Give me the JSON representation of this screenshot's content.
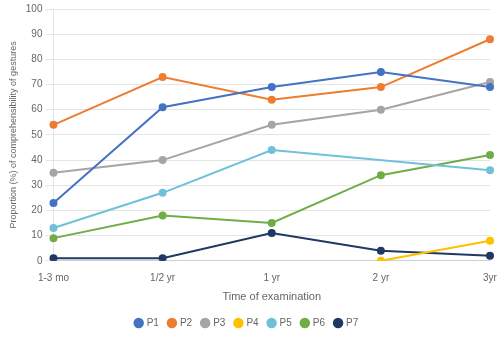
{
  "chart_data": {
    "type": "line",
    "xlabel": "Time of examination",
    "ylabel": "Proportion (%) of comprehensibility of gestures",
    "categories": [
      "1-3 mo",
      "1/2 yr",
      "1 yr",
      "2 yr",
      "3yr"
    ],
    "series": [
      {
        "name": "P1",
        "color": "#4472C4",
        "values": [
          23,
          61,
          69,
          75,
          69
        ]
      },
      {
        "name": "P2",
        "color": "#ED7D31",
        "values": [
          54,
          73,
          64,
          69,
          88
        ]
      },
      {
        "name": "P3",
        "color": "#A5A5A5",
        "values": [
          35,
          40,
          54,
          60,
          71
        ]
      },
      {
        "name": "P4",
        "color": "#FFC000",
        "values": [
          null,
          null,
          null,
          0,
          8
        ]
      },
      {
        "name": "P5",
        "color": "#70C0DA",
        "values": [
          13,
          27,
          44,
          null,
          36
        ]
      },
      {
        "name": "P6",
        "color": "#70AD47",
        "values": [
          9,
          18,
          15,
          34,
          42
        ]
      },
      {
        "name": "P7",
        "color": "#1F3864",
        "values": [
          1,
          1,
          11,
          4,
          2
        ]
      }
    ],
    "ylim": [
      0,
      100
    ],
    "yticks": [
      0,
      10,
      20,
      30,
      40,
      50,
      60,
      70,
      80,
      90,
      100
    ],
    "grid": true,
    "legend": "bottom",
    "marker": "circle"
  }
}
